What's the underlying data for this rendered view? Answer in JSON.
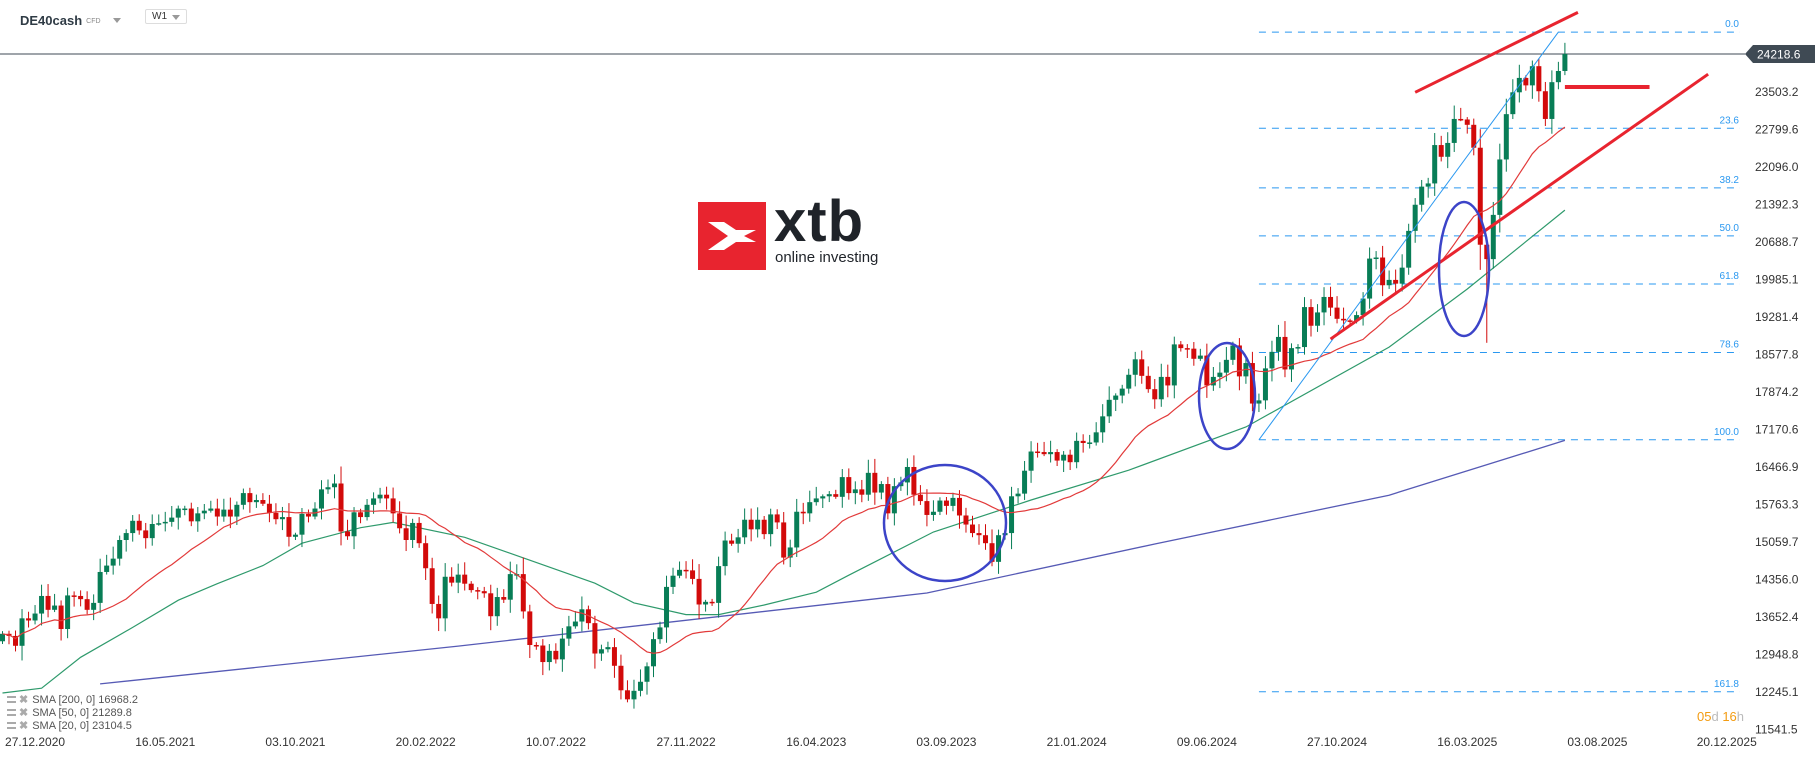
{
  "header": {
    "symbol": "DE40cash",
    "symbol_type": "CFD",
    "timeframe": "W1"
  },
  "logo": {
    "brand": "xtb",
    "tagline": "online investing"
  },
  "current_price": "24218.6",
  "countdown": {
    "days": "05",
    "days_unit": "d",
    "hours": "16",
    "hours_unit": "h"
  },
  "legend": [
    {
      "label": "SMA [200, 0] 16968.2"
    },
    {
      "label": "SMA [50, 0] 21289.8"
    },
    {
      "label": "SMA [20, 0] 23104.5"
    }
  ],
  "colors": {
    "up": "#087d56",
    "down": "#d20a0a",
    "sma20": "#e23a3a",
    "sma50": "#2f9a6c",
    "sma200": "#565ab5",
    "fib": "#2a98f0",
    "trendline": "#e8242f",
    "ellipse": "#3c44c8",
    "price_line": "#3f4a54"
  },
  "chart_data": {
    "type": "candlestick",
    "instrument": "DE40cash",
    "timeframe": "W1",
    "first_week": "2020-11-22",
    "first_open": 13200,
    "closes": [
      13340,
      13300,
      13115,
      13630,
      13590,
      13720,
      14050,
      13790,
      13870,
      13430,
      14060,
      14050,
      13990,
      13790,
      13920,
      14500,
      14620,
      14750,
      15100,
      15230,
      15460,
      15280,
      15135,
      15400,
      15415,
      15440,
      15520,
      15690,
      15690,
      15450,
      15600,
      15650,
      15690,
      15540,
      15670,
      15540,
      15760,
      15980,
      15810,
      15850,
      15780,
      15610,
      15490,
      15530,
      15160,
      15200,
      15590,
      15540,
      15690,
      16050,
      16090,
      16160,
      15260,
      15170,
      15620,
      15530,
      15760,
      15880,
      15950,
      15880,
      15600,
      15320,
      15100,
      15420,
      15040,
      14570,
      13900,
      13630,
      14410,
      14300,
      14450,
      14280,
      14160,
      14140,
      14100,
      13670,
      14030,
      13980,
      14460,
      14460,
      13760,
      13130,
      13120,
      12810,
      13020,
      12860,
      13250,
      13480,
      13570,
      13800,
      13540,
      12970,
      13050,
      13090,
      12740,
      12280,
      12110,
      12270,
      12440,
      12730,
      13240,
      13460,
      14220,
      14430,
      14540,
      14530,
      14370,
      13890,
      13940,
      13920,
      14610,
      15090,
      15030,
      15150,
      15480,
      15300,
      15480,
      15210,
      15580,
      15430,
      14770,
      14960,
      15630,
      15600,
      15810,
      15880,
      15920,
      15960,
      15910,
      16280,
      15980,
      16050,
      15950,
      16360,
      15990,
      16150,
      15600,
      16110,
      16180,
      16470,
      15950,
      15830,
      15570,
      15630,
      15840,
      15740,
      15890,
      15560,
      15390,
      15230,
      15190,
      15040,
      14690,
      15190,
      15230,
      15920,
      15970,
      16400,
      16760,
      16750,
      16710,
      16750,
      16590,
      16700,
      16560,
      16960,
      16920,
      16930,
      17120,
      17420,
      17730,
      17810,
      17940,
      18200,
      18490,
      18180,
      17930,
      17740,
      18160,
      18000,
      18770,
      18700,
      18690,
      18500,
      18560,
      18000,
      18160,
      18240,
      18480,
      18750,
      18170,
      18420,
      17660,
      17720,
      18320,
      18630,
      18910,
      18300,
      18700,
      18720,
      19470,
      19120,
      19370,
      19660,
      19460,
      19250,
      19220,
      19210,
      19320,
      19630,
      20380,
      20400,
      19880,
      19980,
      19910,
      20210,
      20900,
      21390,
      21730,
      21790,
      22510,
      22290,
      22550,
      23000,
      22990,
      22890,
      22460,
      20640,
      20370,
      21200,
      22240,
      23090,
      23500,
      23770,
      23630,
      23990,
      23520,
      23000,
      23690,
      23900,
      24218.6
    ],
    "low_overrides": {
      "2025-04-06": 18800
    },
    "sma20_period": 20,
    "sma50": [
      [
        "2020-11-22",
        12230
      ],
      [
        "2021-01-03",
        12320
      ],
      [
        "2021-02-14",
        12900
      ],
      [
        "2021-04-11",
        13460
      ],
      [
        "2021-05-30",
        13970
      ],
      [
        "2021-07-11",
        14280
      ],
      [
        "2021-08-29",
        14620
      ],
      [
        "2021-10-10",
        15040
      ],
      [
        "2021-12-12",
        15330
      ],
      [
        "2022-01-16",
        15430
      ],
      [
        "2022-04-03",
        15150
      ],
      [
        "2022-06-12",
        14720
      ],
      [
        "2022-08-21",
        14290
      ],
      [
        "2022-10-02",
        13920
      ],
      [
        "2022-11-27",
        13700
      ],
      [
        "2023-01-01",
        13700
      ],
      [
        "2023-02-19",
        13880
      ],
      [
        "2023-04-16",
        14120
      ],
      [
        "2023-05-21",
        14440
      ],
      [
        "2023-08-20",
        15250
      ],
      [
        "2023-12-03",
        15850
      ],
      [
        "2024-03-17",
        16410
      ],
      [
        "2024-07-21",
        17220
      ],
      [
        "2024-12-22",
        18720
      ],
      [
        "2025-03-16",
        19810
      ],
      [
        "2025-06-29",
        21290
      ]
    ],
    "sma200": [
      [
        "2021-03-07",
        12400
      ],
      [
        "2022-03-27",
        13110
      ],
      [
        "2023-08-13",
        14105
      ],
      [
        "2024-04-14",
        15025
      ],
      [
        "2024-12-22",
        15940
      ],
      [
        "2025-06-29",
        16968
      ]
    ],
    "fibonacci": {
      "level_0_price": 24630,
      "level_100_price": 16980,
      "start": "2024-08-04",
      "levels": [
        "0.0",
        "23.6",
        "38.2",
        "50.0",
        "61.8",
        "78.6",
        "100.0",
        "161.8"
      ]
    },
    "y_axis": {
      "ticks": [
        "24218.6",
        "23503.2",
        "22799.6",
        "22096.0",
        "21392.3",
        "20688.7",
        "19985.1",
        "19281.4",
        "18577.8",
        "17874.2",
        "17170.6",
        "16466.9",
        "15763.3",
        "15059.7",
        "14356.0",
        "13652.4",
        "12948.8",
        "12245.1",
        "11541.5"
      ]
    },
    "x_axis": {
      "ticks": [
        "27.12.2020",
        "16.05.2021",
        "03.10.2021",
        "20.02.2022",
        "10.07.2022",
        "27.11.2022",
        "16.04.2023",
        "03.09.2023",
        "21.01.2024",
        "09.06.2024",
        "27.10.2024",
        "16.03.2025",
        "03.08.2025",
        "20.12.2025"
      ]
    },
    "annotations": {
      "trend_channel_upper": [
        [
          "2025-01-19",
          23500
        ],
        [
          "2025-07-13",
          25000
        ]
      ],
      "trend_channel_lower": [
        [
          "2024-10-20",
          18870
        ],
        [
          "2025-11-30",
          23840
        ]
      ],
      "horizontal_marker": [
        [
          "2025-06-29",
          23600
        ],
        [
          "2025-09-28",
          23600
        ]
      ],
      "fib_diagonal": [
        [
          "2024-08-04",
          16980
        ],
        [
          "2025-06-22",
          24630
        ]
      ],
      "ellipses": [
        "2023-10-01",
        "2024-07-28",
        "2025-04-06"
      ]
    }
  }
}
